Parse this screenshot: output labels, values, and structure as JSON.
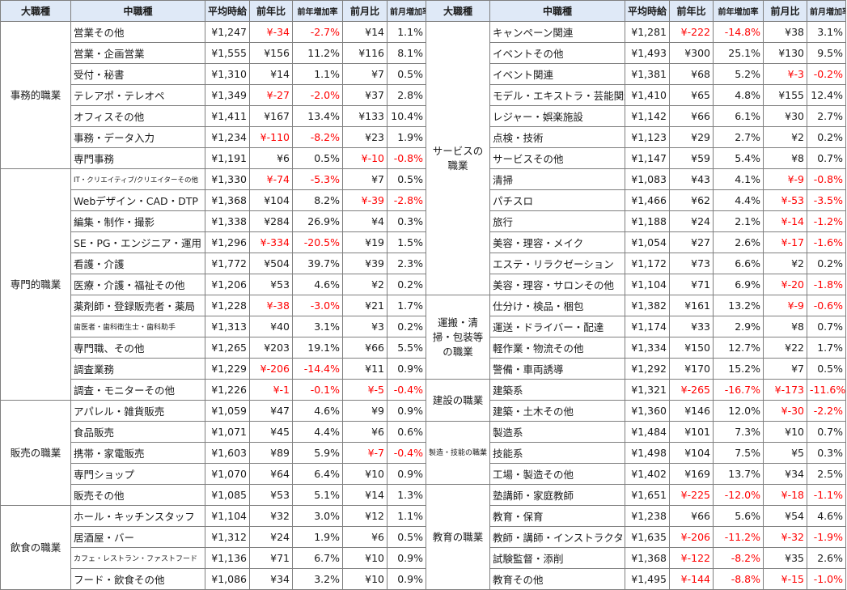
{
  "headers": [
    "大職種",
    "中職種",
    "平均時給",
    "前年比",
    "前年増加率",
    "前月比",
    "前月増加率"
  ],
  "left_groups": [
    {
      "category": "事務的職業",
      "rows": [
        [
          "営業その他",
          "¥1,247",
          "¥-34",
          "-2.7%",
          "¥14",
          "1.1%"
        ],
        [
          "営業・企画営業",
          "¥1,555",
          "¥156",
          "11.2%",
          "¥116",
          "8.1%"
        ],
        [
          "受付・秘書",
          "¥1,310",
          "¥14",
          "1.1%",
          "¥7",
          "0.5%"
        ],
        [
          "テレアポ・テレオペ",
          "¥1,349",
          "¥-27",
          "-2.0%",
          "¥37",
          "2.8%"
        ],
        [
          "オフィスその他",
          "¥1,411",
          "¥167",
          "13.4%",
          "¥133",
          "10.4%"
        ],
        [
          "事務・データ入力",
          "¥1,234",
          "¥-110",
          "-8.2%",
          "¥23",
          "1.9%"
        ],
        [
          "専門事務",
          "¥1,191",
          "¥6",
          "0.5%",
          "¥-10",
          "-0.8%"
        ]
      ]
    },
    {
      "category": "専門的職業",
      "rows": [
        [
          "IT・クリエイティブ/クリエイターその他",
          "¥1,330",
          "¥-74",
          "-5.3%",
          "¥7",
          "0.5%"
        ],
        [
          "Webデザイン・CAD・DTP",
          "¥1,368",
          "¥104",
          "8.2%",
          "¥-39",
          "-2.8%"
        ],
        [
          "編集・制作・撮影",
          "¥1,338",
          "¥284",
          "26.9%",
          "¥4",
          "0.3%"
        ],
        [
          "SE・PG・エンジニア・運用",
          "¥1,296",
          "¥-334",
          "-20.5%",
          "¥19",
          "1.5%"
        ],
        [
          "看護・介護",
          "¥1,772",
          "¥504",
          "39.7%",
          "¥39",
          "2.3%"
        ],
        [
          "医療・介護・福祉その他",
          "¥1,206",
          "¥53",
          "4.6%",
          "¥2",
          "0.2%"
        ],
        [
          "薬剤師・登録販売者・薬局",
          "¥1,228",
          "¥-38",
          "-3.0%",
          "¥21",
          "1.7%"
        ],
        [
          "歯医者・歯科衛生士・歯科助手",
          "¥1,313",
          "¥40",
          "3.1%",
          "¥3",
          "0.2%"
        ],
        [
          "専門職、その他",
          "¥1,265",
          "¥203",
          "19.1%",
          "¥66",
          "5.5%"
        ],
        [
          "調査業務",
          "¥1,229",
          "¥-206",
          "-14.4%",
          "¥11",
          "0.9%"
        ],
        [
          "調査・モニターその他",
          "¥1,226",
          "¥-1",
          "-0.1%",
          "¥-5",
          "-0.4%"
        ]
      ]
    },
    {
      "category": "販売の職業",
      "rows": [
        [
          "アパレル・雑貨販売",
          "¥1,059",
          "¥47",
          "4.6%",
          "¥9",
          "0.9%"
        ],
        [
          "食品販売",
          "¥1,071",
          "¥45",
          "4.4%",
          "¥6",
          "0.6%"
        ],
        [
          "携帯・家電販売",
          "¥1,603",
          "¥89",
          "5.9%",
          "¥-7",
          "-0.4%"
        ],
        [
          "専門ショップ",
          "¥1,070",
          "¥64",
          "6.4%",
          "¥10",
          "0.9%"
        ],
        [
          "販売その他",
          "¥1,085",
          "¥53",
          "5.1%",
          "¥14",
          "1.3%"
        ]
      ]
    },
    {
      "category": "飲食の職業",
      "rows": [
        [
          "ホール・キッチンスタッフ",
          "¥1,104",
          "¥32",
          "3.0%",
          "¥12",
          "1.1%"
        ],
        [
          "居酒屋・バー",
          "¥1,312",
          "¥24",
          "1.9%",
          "¥6",
          "0.5%"
        ],
        [
          "カフェ・レストラン・ファストフード",
          "¥1,136",
          "¥71",
          "6.7%",
          "¥10",
          "0.9%"
        ],
        [
          "フード・飲食その他",
          "¥1,086",
          "¥34",
          "3.2%",
          "¥10",
          "0.9%"
        ]
      ]
    }
  ],
  "right_groups": [
    {
      "category": "サービスの職業",
      "rows": [
        [
          "キャンペーン関連",
          "¥1,281",
          "¥-222",
          "-14.8%",
          "¥38",
          "3.1%"
        ],
        [
          "イベントその他",
          "¥1,493",
          "¥300",
          "25.1%",
          "¥130",
          "9.5%"
        ],
        [
          "イベント関連",
          "¥1,381",
          "¥68",
          "5.2%",
          "¥-3",
          "-0.2%"
        ],
        [
          "モデル・エキストラ・芸能関連",
          "¥1,410",
          "¥65",
          "4.8%",
          "¥155",
          "12.4%"
        ],
        [
          "レジャー・娯楽施設",
          "¥1,142",
          "¥66",
          "6.1%",
          "¥30",
          "2.7%"
        ],
        [
          "点検・技術",
          "¥1,123",
          "¥29",
          "2.7%",
          "¥2",
          "0.2%"
        ],
        [
          "サービスその他",
          "¥1,147",
          "¥59",
          "5.4%",
          "¥8",
          "0.7%"
        ],
        [
          "清掃",
          "¥1,083",
          "¥43",
          "4.1%",
          "¥-9",
          "-0.8%"
        ],
        [
          "パチスロ",
          "¥1,466",
          "¥62",
          "4.4%",
          "¥-53",
          "-3.5%"
        ],
        [
          "旅行",
          "¥1,188",
          "¥24",
          "2.1%",
          "¥-14",
          "-1.2%"
        ],
        [
          "美容・理容・メイク",
          "¥1,054",
          "¥27",
          "2.6%",
          "¥-17",
          "-1.6%"
        ],
        [
          "エステ・リラクゼーション",
          "¥1,172",
          "¥73",
          "6.6%",
          "¥2",
          "0.2%"
        ],
        [
          "美容・理容・サロンその他",
          "¥1,104",
          "¥71",
          "6.9%",
          "¥-20",
          "-1.8%"
        ]
      ]
    },
    {
      "category": "運搬・清掃・包装等の職業",
      "rows": [
        [
          "仕分け・検品・梱包",
          "¥1,382",
          "¥161",
          "13.2%",
          "¥-9",
          "-0.6%"
        ],
        [
          "運送・ドライバー・配達",
          "¥1,174",
          "¥33",
          "2.9%",
          "¥8",
          "0.7%"
        ],
        [
          "軽作業・物流その他",
          "¥1,334",
          "¥150",
          "12.7%",
          "¥22",
          "1.7%"
        ],
        [
          "警備・車両誘導",
          "¥1,292",
          "¥170",
          "15.2%",
          "¥7",
          "0.5%"
        ]
      ]
    },
    {
      "category": "建設の職業",
      "rows": [
        [
          "建築系",
          "¥1,321",
          "¥-265",
          "-16.7%",
          "¥-173",
          "-11.6%"
        ],
        [
          "建築・土木その他",
          "¥1,360",
          "¥146",
          "12.0%",
          "¥-30",
          "-2.2%"
        ]
      ]
    },
    {
      "category": "製造・技能の職業",
      "rows": [
        [
          "製造系",
          "¥1,484",
          "¥101",
          "7.3%",
          "¥10",
          "0.7%"
        ],
        [
          "技能系",
          "¥1,498",
          "¥104",
          "7.5%",
          "¥5",
          "0.3%"
        ],
        [
          "工場・製造その他",
          "¥1,402",
          "¥169",
          "13.7%",
          "¥34",
          "2.5%"
        ]
      ]
    },
    {
      "category": "教育の職業",
      "rows": [
        [
          "塾講師・家庭教師",
          "¥1,651",
          "¥-225",
          "-12.0%",
          "¥-18",
          "-1.1%"
        ],
        [
          "教育・保育",
          "¥1,238",
          "¥66",
          "5.6%",
          "¥54",
          "4.6%"
        ],
        [
          "教師・講師・インストラクター",
          "¥1,635",
          "¥-206",
          "-11.2%",
          "¥-32",
          "-1.9%"
        ],
        [
          "試験監督・添削",
          "¥1,368",
          "¥-122",
          "-8.2%",
          "¥35",
          "2.6%"
        ],
        [
          "教育その他",
          "¥1,495",
          "¥-144",
          "-8.8%",
          "¥-15",
          "-1.0%"
        ]
      ]
    }
  ]
}
